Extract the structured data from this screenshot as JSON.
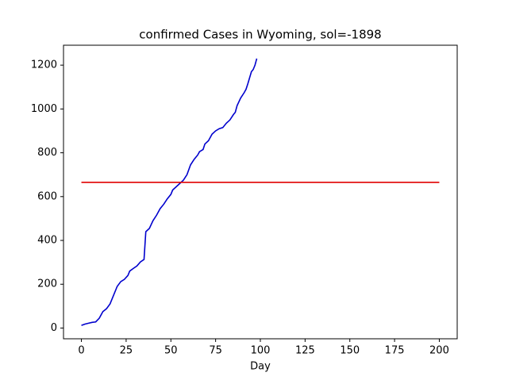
{
  "chart_data": {
    "type": "line",
    "title": "confirmed Cases in Wyoming, sol=-1898",
    "x_label": "Day",
    "series": [
      {
        "color": "#0000cd",
        "x": [
          0,
          2,
          4,
          6,
          8,
          10,
          12,
          14,
          16,
          18,
          20,
          22,
          24,
          26,
          27,
          29,
          31,
          33,
          35,
          36,
          38,
          40,
          42,
          44,
          46,
          48,
          50,
          51,
          53,
          55,
          57,
          59,
          61,
          63,
          65,
          66,
          68,
          69,
          71,
          73,
          75,
          77,
          79,
          81,
          83,
          85,
          86,
          87,
          89,
          91,
          92,
          93,
          95,
          96,
          97,
          98
        ],
        "values": [
          12,
          18,
          22,
          26,
          28,
          45,
          75,
          88,
          110,
          150,
          190,
          212,
          222,
          240,
          260,
          272,
          283,
          302,
          313,
          440,
          455,
          490,
          515,
          545,
          565,
          590,
          610,
          630,
          645,
          660,
          675,
          700,
          745,
          770,
          790,
          805,
          815,
          840,
          855,
          885,
          900,
          910,
          915,
          935,
          950,
          975,
          985,
          1015,
          1050,
          1075,
          1090,
          1115,
          1170,
          1180,
          1200,
          1230
        ]
      },
      {
        "color": "#e00000",
        "x": [
          0,
          200
        ],
        "values": [
          665,
          665
        ]
      }
    ],
    "xlim": [
      -10,
      210
    ],
    "xticks": [
      0,
      25,
      50,
      75,
      100,
      125,
      150,
      175,
      200
    ],
    "ylim": [
      -49,
      1291
    ],
    "yticks": [
      0,
      200,
      400,
      600,
      800,
      1000,
      1200
    ]
  }
}
